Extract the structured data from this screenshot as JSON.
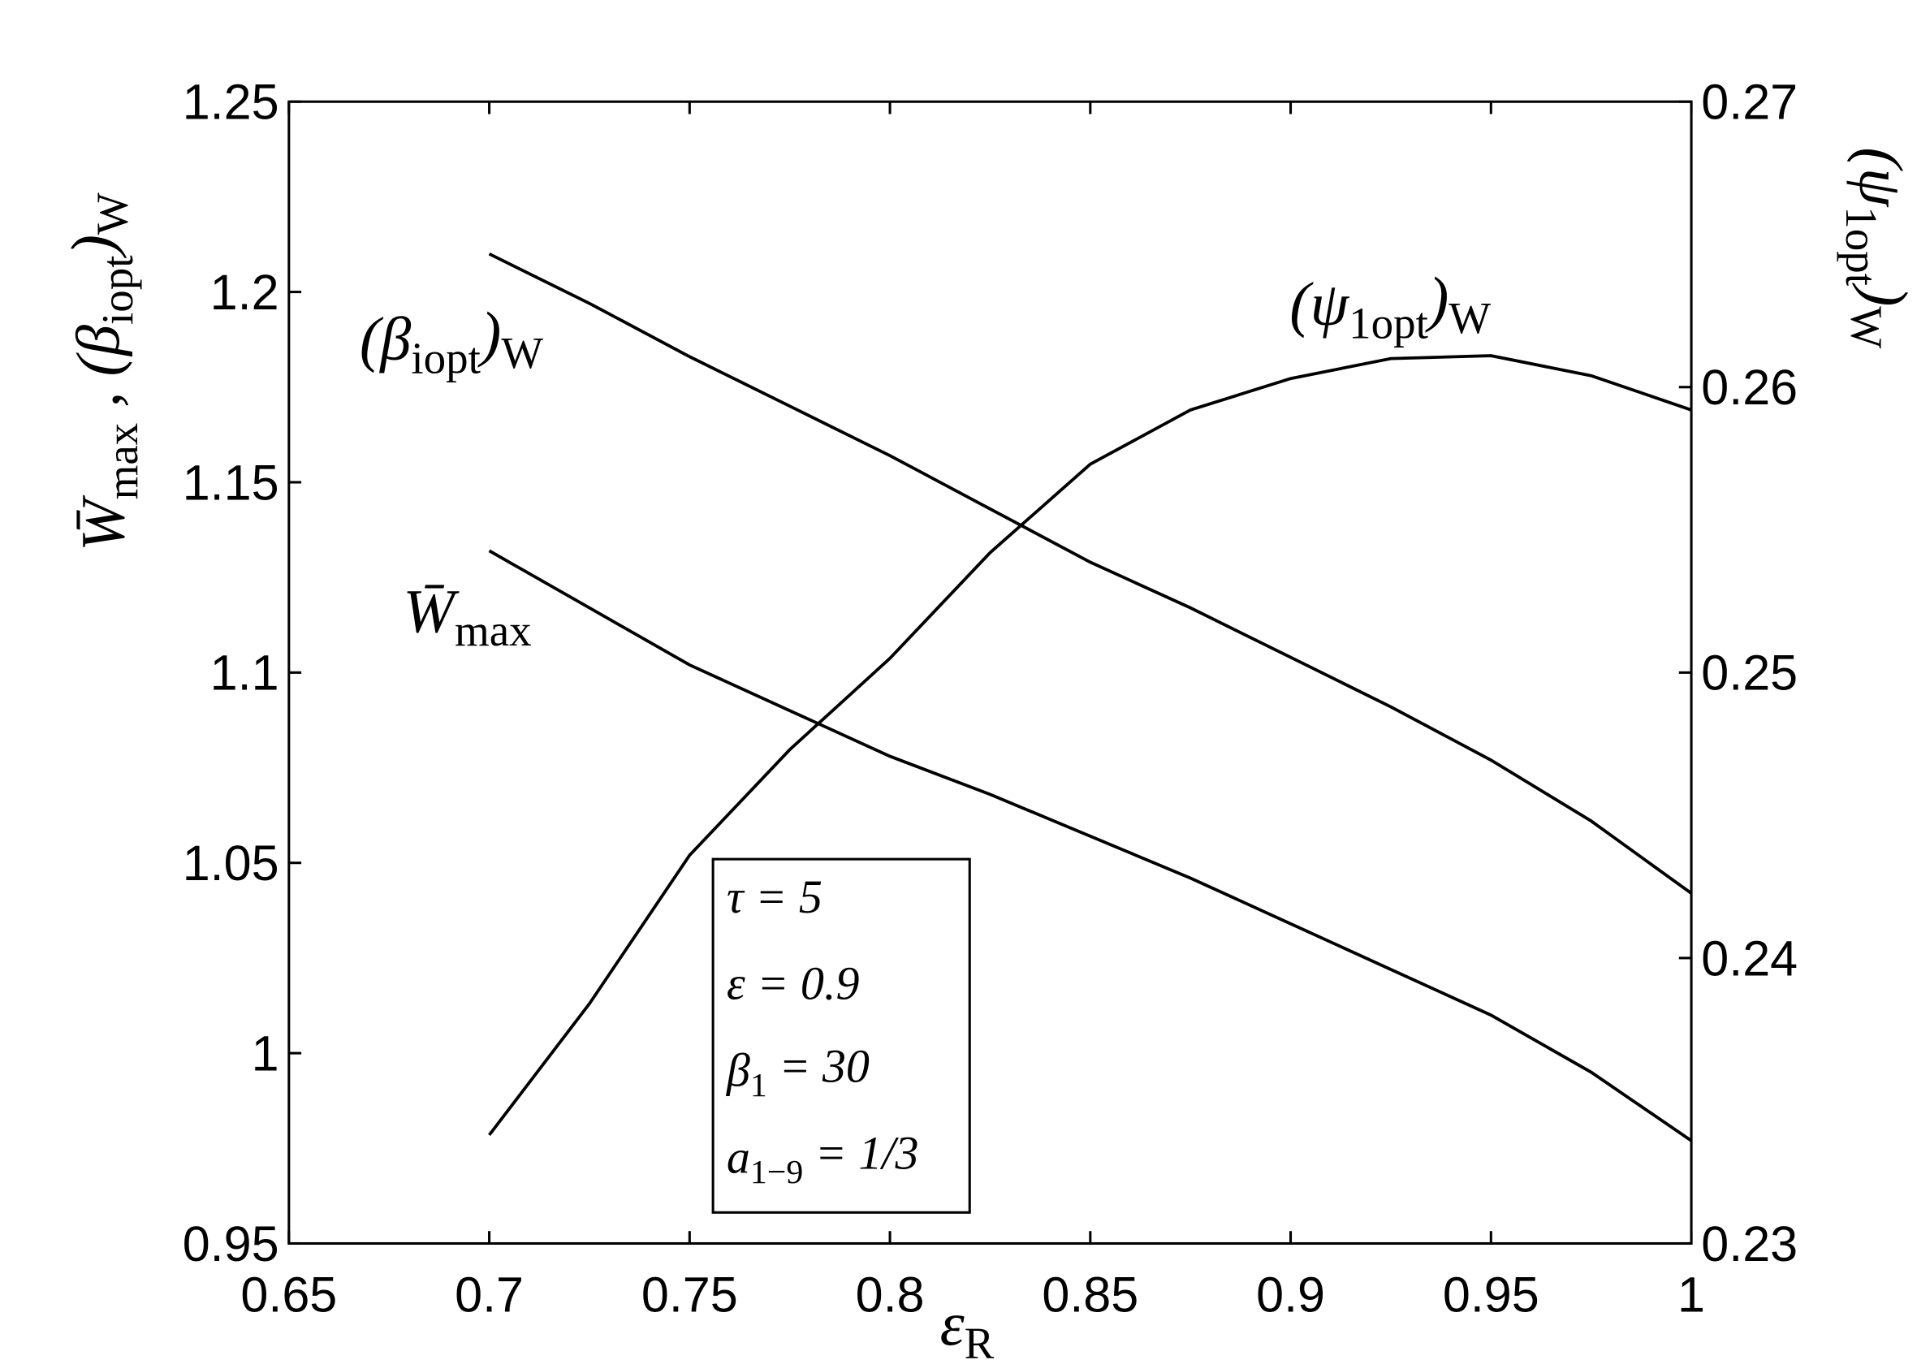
{
  "chart_data": {
    "type": "line",
    "x": [
      0.7,
      0.725,
      0.75,
      0.775,
      0.8,
      0.825,
      0.85,
      0.875,
      0.9,
      0.925,
      0.95,
      0.975,
      1.0
    ],
    "series": [
      {
        "name": [
          "(β",
          "iopt",
          ")",
          "W"
        ],
        "color": "#000000",
        "values": [
          1.21,
          1.197,
          1.183,
          1.17,
          1.157,
          1.143,
          1.129,
          1.117,
          1.104,
          1.091,
          1.077,
          1.061,
          1.042
        ]
      },
      {
        "name": [
          "W̄",
          "max"
        ],
        "color": "#000000",
        "values": [
          1.132,
          1.117,
          1.102,
          1.09,
          1.078,
          1.068,
          1.057,
          1.046,
          1.034,
          1.022,
          1.01,
          0.995,
          0.977
        ]
      },
      {
        "name": [
          "(ψ",
          "1opt",
          ")",
          "W"
        ],
        "color": "#000000",
        "axis": "y2",
        "values": [
          0.2338,
          0.2384,
          0.2436,
          0.2473,
          0.2505,
          0.2542,
          0.2573,
          0.2592,
          0.2603,
          0.261,
          0.2611,
          0.2604,
          0.2592
        ]
      }
    ],
    "x_label": [
      "ε",
      "R"
    ],
    "y_label": [
      "W̄",
      "max",
      " , (β",
      "iopt",
      ")",
      "W"
    ],
    "y2_label": [
      "(ψ",
      "1opt",
      ")",
      "W"
    ],
    "annotations": [
      [
        "τ = 5"
      ],
      [
        "ε = 0.9"
      ],
      [
        "β",
        "1",
        " = 30"
      ],
      [
        "a",
        "1−9",
        " = 1/3"
      ]
    ],
    "xlim": [
      0.65,
      1
    ],
    "xticks": [
      0.65,
      0.7,
      0.75,
      0.8,
      0.85,
      0.9,
      0.95,
      1
    ],
    "ylim": [
      0.95,
      1.25
    ],
    "yticks": [
      0.95,
      1,
      1.05,
      1.1,
      1.15,
      1.2,
      1.25
    ],
    "y2lim": [
      0.23,
      0.27
    ],
    "y2ticks": [
      0.23,
      0.24,
      0.25,
      0.26,
      0.27
    ],
    "grid": false
  }
}
